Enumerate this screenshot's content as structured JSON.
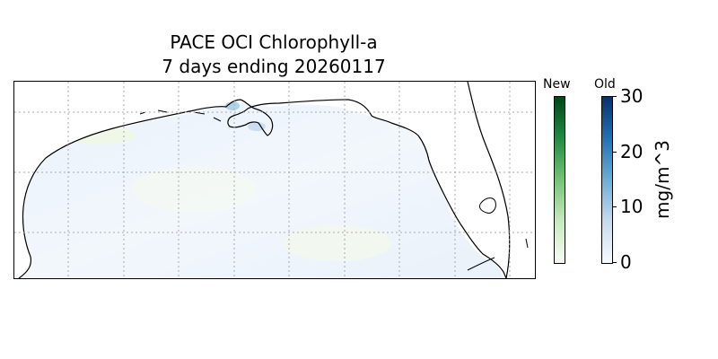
{
  "title": {
    "line1": "PACE OCI Chlorophyll-a",
    "line2": "7 days ending 20260117"
  },
  "map": {
    "region": "Gulf of Mexico",
    "gridlines": "dotted",
    "coastline_color": "#000000",
    "water_color": "#eef4fb"
  },
  "colorbars": {
    "new": {
      "label": "New",
      "colormap": "Greens"
    },
    "old": {
      "label": "Old",
      "colormap": "Blues",
      "ticks": [
        "0",
        "10",
        "20",
        "30"
      ],
      "range": [
        0,
        30
      ],
      "unit": "mg/m^3"
    }
  }
}
